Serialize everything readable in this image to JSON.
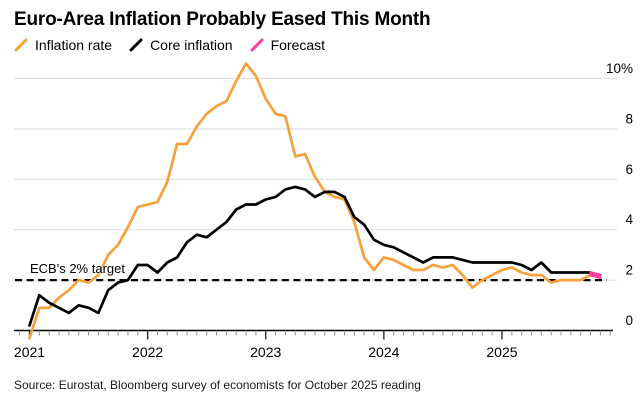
{
  "title": "Euro-Area Inflation Probably Eased This Month",
  "legend": [
    {
      "label": "Inflation rate",
      "color": "#f7a13b"
    },
    {
      "label": "Core inflation",
      "color": "#000000"
    },
    {
      "label": "Forecast",
      "color": "#ff3ca0"
    }
  ],
  "source": "Source: Eurostat, Bloomberg survey of economists for October 2025 reading",
  "chart_data": {
    "type": "line",
    "unit": "%",
    "x_start": "Dec 2020",
    "x_end_actual": "Sep 2025",
    "forecast_month": "Oct 2025",
    "x_tick_years": [
      "2021",
      "2022",
      "2023",
      "2024",
      "2025"
    ],
    "y_ticks": [
      {
        "v": 0,
        "label": "0"
      },
      {
        "v": 2,
        "label": "2"
      },
      {
        "v": 4,
        "label": "4"
      },
      {
        "v": 6,
        "label": "6"
      },
      {
        "v": 8,
        "label": "8"
      },
      {
        "v": 10,
        "label": "10%"
      }
    ],
    "ylim": [
      0,
      10
    ],
    "grid": true,
    "legend_position": "top",
    "target_line": {
      "value": 2,
      "label": "ECB's 2% target"
    },
    "series": [
      {
        "name": "Inflation rate",
        "color": "#f7a13b",
        "values": [
          -0.3,
          0.9,
          0.9,
          1.3,
          1.6,
          2.0,
          1.9,
          2.2,
          3.0,
          3.4,
          4.1,
          4.9,
          5.0,
          5.1,
          5.9,
          7.4,
          7.4,
          8.1,
          8.6,
          8.9,
          9.1,
          9.9,
          10.6,
          10.1,
          9.2,
          8.6,
          8.5,
          6.9,
          7.0,
          6.1,
          5.5,
          5.3,
          5.2,
          4.3,
          2.9,
          2.4,
          2.9,
          2.8,
          2.6,
          2.4,
          2.4,
          2.6,
          2.5,
          2.6,
          2.2,
          1.7,
          2.0,
          2.2,
          2.4,
          2.5,
          2.3,
          2.2,
          2.2,
          1.9,
          2.0,
          2.0,
          2.0,
          2.2
        ]
      },
      {
        "name": "Core inflation",
        "color": "#000000",
        "values": [
          0.2,
          1.4,
          1.1,
          0.9,
          0.7,
          1.0,
          0.9,
          0.7,
          1.6,
          1.9,
          2.0,
          2.6,
          2.6,
          2.3,
          2.7,
          2.9,
          3.5,
          3.8,
          3.7,
          4.0,
          4.3,
          4.8,
          5.0,
          5.0,
          5.2,
          5.3,
          5.6,
          5.7,
          5.6,
          5.3,
          5.5,
          5.5,
          5.3,
          4.5,
          4.2,
          3.6,
          3.4,
          3.3,
          3.1,
          2.9,
          2.7,
          2.9,
          2.9,
          2.9,
          2.8,
          2.7,
          2.7,
          2.7,
          2.7,
          2.7,
          2.6,
          2.4,
          2.7,
          2.3,
          2.3,
          2.3,
          2.3,
          2.3
        ]
      }
    ],
    "forecast": {
      "name": "Forecast",
      "color": "#ff3ca0",
      "values": {
        "Inflation rate": 2.1,
        "Core inflation": 2.2
      }
    }
  }
}
